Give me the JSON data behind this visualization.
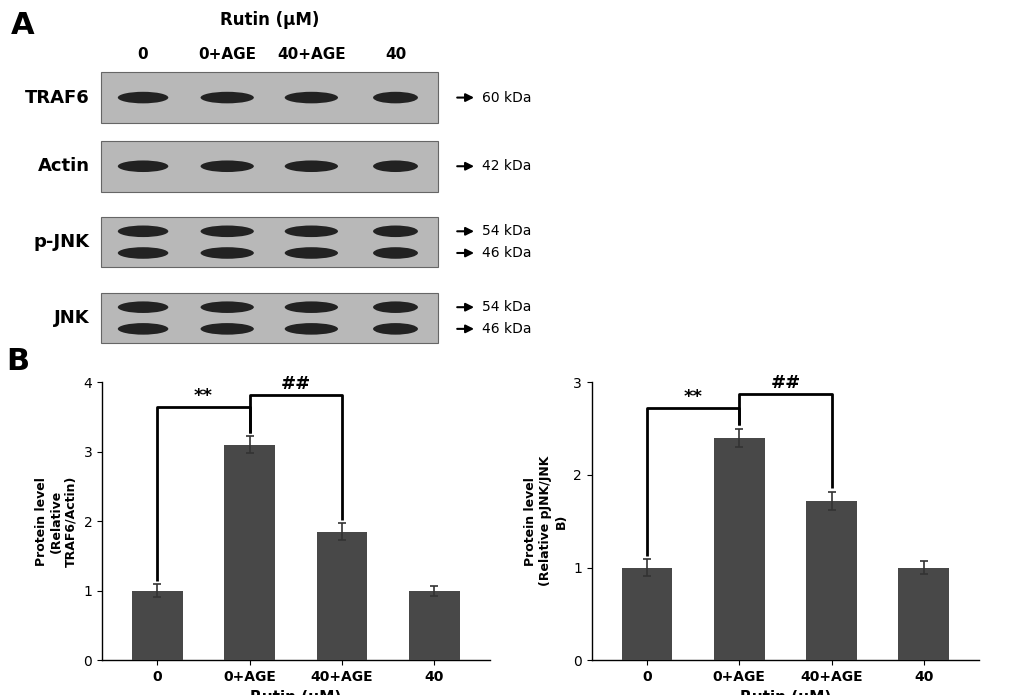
{
  "panel_A_label": "A",
  "panel_B_label": "B",
  "blot_labels": [
    "TRAF6",
    "Actin",
    "p-JNK",
    "JNK"
  ],
  "col_labels": [
    "0",
    "0+AGE",
    "40+AGE",
    "40"
  ],
  "rutin_label": "Rutin (μM)",
  "bar_categories": [
    "0",
    "0+AGE",
    "40+AGE",
    "40"
  ],
  "bar_color": "#484848",
  "chart1_values": [
    1.0,
    3.1,
    1.85,
    1.0
  ],
  "chart1_errors": [
    0.09,
    0.12,
    0.12,
    0.07
  ],
  "chart1_ylim": [
    0,
    4
  ],
  "chart1_yticks": [
    0,
    1,
    2,
    3,
    4
  ],
  "chart2_values": [
    1.0,
    2.4,
    1.72,
    1.0
  ],
  "chart2_errors": [
    0.09,
    0.1,
    0.1,
    0.07
  ],
  "chart2_ylim": [
    0,
    3
  ],
  "chart2_yticks": [
    0,
    1,
    2,
    3
  ],
  "xlabel": "Rutin (μM)",
  "sig_star_star": "**",
  "sig_hash_hash": "##",
  "background_color": "#ffffff",
  "blot_bg_color": "#b8b8b8",
  "band_color": "#222222",
  "blot_rows": [
    {
      "label": "TRAF6",
      "double": false,
      "kda": [
        "60 kDa"
      ]
    },
    {
      "label": "Actin",
      "double": false,
      "kda": [
        "42 kDa"
      ]
    },
    {
      "label": "p-JNK",
      "double": true,
      "kda": [
        "54 kDa",
        "46 kDa"
      ]
    },
    {
      "label": "JNK",
      "double": true,
      "kda": [
        "54 kDa",
        "46 kDa"
      ]
    }
  ]
}
